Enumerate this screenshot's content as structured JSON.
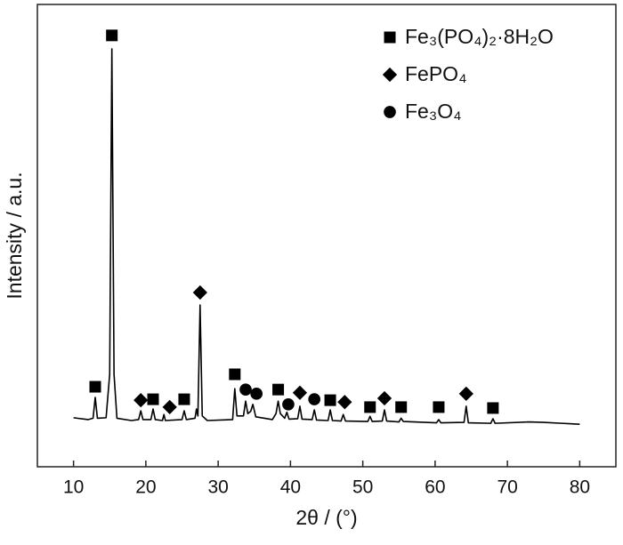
{
  "chart_data": {
    "type": "line",
    "x_label": "2θ / (°)",
    "y_label": "Intensity / a.u.",
    "xlim": [
      5,
      85
    ],
    "xticks": [
      10,
      20,
      30,
      40,
      50,
      60,
      70,
      80
    ],
    "ylim": [
      0,
      100
    ],
    "color": "#000000",
    "grid": false,
    "legend": "top-right",
    "x": [
      10,
      12,
      12.7,
      13,
      13.3,
      14.5,
      15,
      15.3,
      15.6,
      16,
      18,
      19,
      19.3,
      19.6,
      20.7,
      21,
      21.3,
      22.3,
      22.5,
      22.7,
      25,
      25.3,
      25.6,
      26.8,
      27,
      27.2,
      27.5,
      27.8,
      28.5,
      32,
      32.3,
      32.6,
      33.5,
      33.8,
      34.1,
      34.5,
      34.8,
      35.2,
      37.5,
      38,
      38.3,
      38.6,
      39.2,
      39.5,
      39.8,
      41,
      41.3,
      41.6,
      43,
      43.3,
      43.6,
      45.2,
      45.5,
      45.8,
      47,
      47.3,
      47.6,
      50.7,
      51,
      51.3,
      52.7,
      53,
      53.3,
      55,
      55.3,
      55.6,
      60.2,
      60.5,
      60.8,
      64,
      64.3,
      64.6,
      67.7,
      68,
      68.3,
      73,
      75,
      80
    ],
    "values": [
      10.6,
      10.2,
      10.5,
      15,
      10.5,
      10.6,
      20,
      90.4,
      20,
      10.5,
      10,
      10.2,
      12.1,
      10.2,
      10.2,
      12.5,
      10.2,
      10,
      11.3,
      10,
      10.2,
      12.1,
      10.2,
      10.5,
      12.5,
      11,
      35,
      11,
      10,
      10.2,
      16.9,
      11,
      11,
      14.2,
      11.5,
      12,
      13.5,
      10.8,
      10.2,
      11.5,
      14.2,
      11.5,
      10.5,
      11.8,
      10.3,
      10.4,
      13.1,
      10.3,
      10.2,
      12.3,
      10.1,
      10,
      12.3,
      10,
      9.9,
      11.3,
      9.9,
      9.8,
      10.9,
      9.8,
      9.9,
      12.3,
      9.9,
      9.7,
      10.5,
      9.8,
      9.5,
      10.2,
      9.5,
      9.6,
      13.1,
      9.5,
      9.4,
      10.4,
      9.4,
      9.7,
      9.6,
      9.2
    ],
    "markers": [
      {
        "name": "Fe₃(PO₄)₂·8H₂O",
        "marker": "square",
        "color": "#000000",
        "x": [
          13,
          15.3,
          21,
          25.3,
          32.3,
          38.3,
          45.5,
          51,
          55.3,
          60.5,
          68
        ],
        "y": [
          17.3,
          93.3,
          14.6,
          14.6,
          20,
          16.7,
          14.4,
          12.9,
          12.9,
          12.9,
          12.7
        ]
      },
      {
        "name": "FePO₄",
        "marker": "diamond",
        "color": "#000000",
        "x": [
          19.3,
          23.3,
          27.5,
          41.3,
          47.5,
          53,
          64.3
        ],
        "y": [
          14.4,
          12.9,
          37.7,
          16,
          14,
          14.8,
          15.8
        ]
      },
      {
        "name": "Fe₃O₄",
        "marker": "circle",
        "color": "#000000",
        "x": [
          33.8,
          35.3,
          39.7,
          43.3
        ],
        "y": [
          16.7,
          15.8,
          13.5,
          14.6
        ]
      }
    ]
  }
}
